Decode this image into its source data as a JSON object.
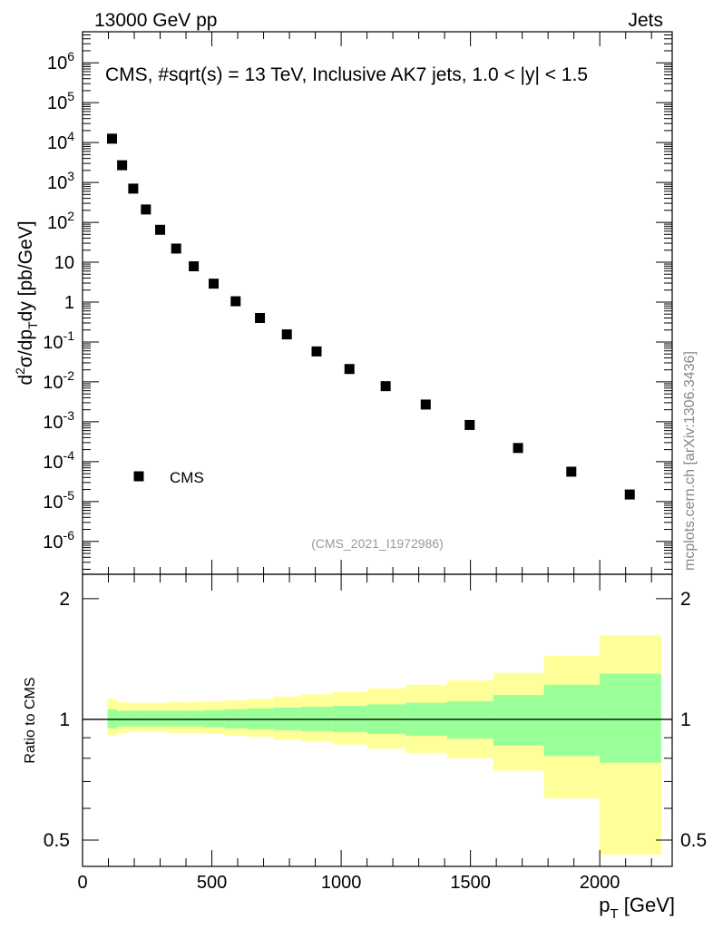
{
  "header": {
    "left": "13000 GeV pp",
    "right": "Jets"
  },
  "side_label": "mcplots.cern.ch [arXiv:1306.3436]",
  "chart_data": [
    {
      "type": "scatter",
      "title": "CMS, #sqrt(s) = 13 TeV, Inclusive AK7 jets, 1.0 < |y| < 1.5",
      "ylabel": "d²σ/dp_T dy [pb/GeV]",
      "ylabel_parts": {
        "main": "d",
        "sup": "2",
        "mid": "σ/dp",
        "sub": "T",
        "end": "dy [pb/GeV]"
      },
      "xlabel": "p_T [GeV]",
      "yscale": "log",
      "xlim": [
        0,
        2280
      ],
      "ylim": [
        1.5e-07,
        6000000.0
      ],
      "legend": [
        {
          "label": "CMS",
          "marker": "square",
          "position": "lower-left"
        }
      ],
      "watermark": "(CMS_2021_I1972986)",
      "y_tick_labels": [
        {
          "value": 1000000.0,
          "base": "10",
          "exp": "6"
        },
        {
          "value": 100000.0,
          "base": "10",
          "exp": "5"
        },
        {
          "value": 10000.0,
          "base": "10",
          "exp": "4"
        },
        {
          "value": 1000.0,
          "base": "10",
          "exp": "3"
        },
        {
          "value": 100.0,
          "base": "10",
          "exp": "2"
        },
        {
          "value": 10,
          "base": "10",
          "exp": ""
        },
        {
          "value": 1,
          "base": "1",
          "exp": ""
        },
        {
          "value": 0.1,
          "base": "10",
          "exp": "-1"
        },
        {
          "value": 0.01,
          "base": "10",
          "exp": "-2"
        },
        {
          "value": 0.001,
          "base": "10",
          "exp": "-3"
        },
        {
          "value": 0.0001,
          "base": "10",
          "exp": "-4"
        },
        {
          "value": 1e-05,
          "base": "10",
          "exp": "-5"
        },
        {
          "value": 1e-06,
          "base": "10",
          "exp": "-6"
        }
      ],
      "series": [
        {
          "name": "CMS",
          "x": [
            114,
            153,
            196,
            245,
            300,
            362,
            430,
            507,
            592,
            686,
            790,
            905,
            1032,
            1172,
            1327,
            1497,
            1684,
            1890,
            2116
          ],
          "y": [
            12500,
            2700,
            700,
            210,
            65,
            22,
            7.9,
            2.9,
            1.05,
            0.4,
            0.155,
            0.058,
            0.021,
            0.0078,
            0.0027,
            0.00083,
            0.00022,
            5.6e-05,
            1.5e-05
          ]
        }
      ]
    },
    {
      "type": "area",
      "ylabel": "Ratio to CMS",
      "xlabel": "p_T [GeV]",
      "xlim": [
        0,
        2280
      ],
      "ylim": [
        0.43,
        2.3
      ],
      "y_tick_labels": [
        "2",
        "1",
        "0.5"
      ],
      "y_tick_values": [
        2,
        1,
        0.5
      ],
      "x_tick_labels": [
        "0",
        "500",
        "1000",
        "1500",
        "2000"
      ],
      "x_tick_values": [
        0,
        500,
        1000,
        1500,
        2000
      ],
      "reference_line": 1,
      "bin_edges": [
        97,
        133,
        174,
        220,
        272,
        330,
        395,
        468,
        548,
        638,
        737,
        846,
        967,
        1101,
        1248,
        1410,
        1588,
        1784,
        2000,
        2238
      ],
      "stat_band": {
        "color": "#99ff99",
        "low": [
          0.95,
          0.96,
          0.96,
          0.96,
          0.96,
          0.96,
          0.96,
          0.955,
          0.95,
          0.945,
          0.94,
          0.935,
          0.93,
          0.92,
          0.91,
          0.895,
          0.86,
          0.81,
          0.78
        ],
        "high": [
          1.06,
          1.05,
          1.05,
          1.05,
          1.05,
          1.05,
          1.05,
          1.055,
          1.06,
          1.065,
          1.07,
          1.075,
          1.08,
          1.09,
          1.1,
          1.11,
          1.15,
          1.22,
          1.3
        ]
      },
      "syst_band": {
        "color": "#ffff99",
        "low": [
          0.91,
          0.925,
          0.93,
          0.93,
          0.93,
          0.925,
          0.925,
          0.92,
          0.91,
          0.905,
          0.89,
          0.88,
          0.865,
          0.845,
          0.825,
          0.8,
          0.745,
          0.635,
          0.46
        ],
        "high": [
          1.125,
          1.105,
          1.1,
          1.1,
          1.1,
          1.105,
          1.105,
          1.11,
          1.115,
          1.125,
          1.14,
          1.155,
          1.17,
          1.195,
          1.22,
          1.25,
          1.305,
          1.44,
          1.62
        ]
      }
    }
  ]
}
